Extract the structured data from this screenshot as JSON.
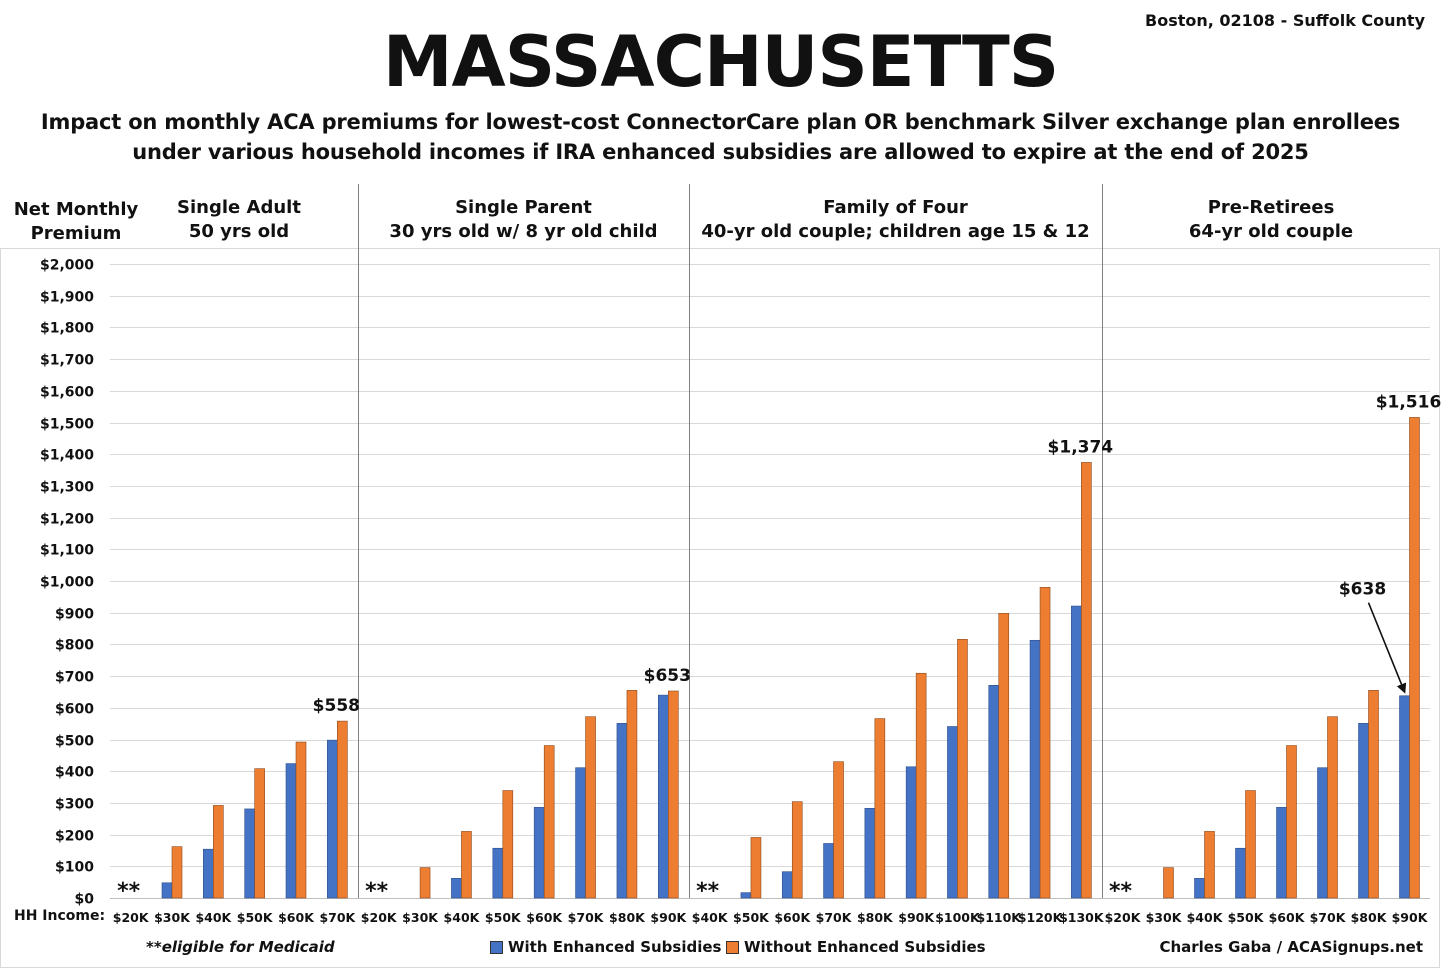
{
  "header": {
    "location": "Boston, 02108 - Suffolk County",
    "title": "MASSACHUSETTS",
    "subtitle_line1": "Impact on monthly ACA premiums for lowest-cost ConnectorCare plan OR benchmark Silver exchange plan enrollees",
    "subtitle_line2": "under various household incomes if IRA enhanced subsidies are allowed to expire at the end of 2025"
  },
  "footer": {
    "hh_income_label": "HH Income:",
    "footnote": "**eligible for Medicaid",
    "credit": "Charles Gaba / ACASignups.net"
  },
  "colors": {
    "with": "#4472C4",
    "without": "#ED7D31",
    "grid": "#d9d9d9",
    "divider": "#7f7f7f"
  },
  "chart_data": {
    "type": "bar",
    "ylabel_line1": "Net Monthly",
    "ylabel_line2": "Premium",
    "ylim": [
      0,
      2000
    ],
    "yticks": [
      0,
      100,
      200,
      300,
      400,
      500,
      600,
      700,
      800,
      900,
      1000,
      1100,
      1200,
      1300,
      1400,
      1500,
      1600,
      1700,
      1800,
      1900,
      2000
    ],
    "ytick_labels": [
      "$0",
      "$100",
      "$200",
      "$300",
      "$400",
      "$500",
      "$600",
      "$700",
      "$800",
      "$900",
      "$1,000",
      "$1,100",
      "$1,200",
      "$1,300",
      "$1,400",
      "$1,500",
      "$1,600",
      "$1,700",
      "$1,800",
      "$1,900",
      "$2,000"
    ],
    "grid": true,
    "legend": {
      "placement": "bottom",
      "with_label": "With Enhanced Subsidies",
      "without_label": "Without Enhanced Subsidies"
    },
    "panels": [
      {
        "title_line1": "Single Adult",
        "title_line2": "50 yrs old",
        "categories": [
          "$20K",
          "$30K",
          "$40K",
          "$50K",
          "$60K",
          "$70K"
        ],
        "medicaid_marker": "**",
        "series": [
          {
            "name": "With Enhanced Subsidies",
            "values": [
              0,
              48,
              154,
              281,
              424,
              498
            ]
          },
          {
            "name": "Without Enhanced Subsidies",
            "values": [
              0,
              162,
              292,
              408,
              492,
              558
            ]
          }
        ],
        "annotation": {
          "text": "$558",
          "category": "$70K",
          "value": 558
        }
      },
      {
        "title_line1": "Single Parent",
        "title_line2": "30 yrs old w/ 8 yr old child",
        "categories": [
          "$20K",
          "$30K",
          "$40K",
          "$50K",
          "$60K",
          "$70K",
          "$80K",
          "$90K"
        ],
        "medicaid_marker": "**",
        "series": [
          {
            "name": "With Enhanced Subsidies",
            "values": [
              0,
              0,
              62,
              157,
              286,
              411,
              551,
              640
            ]
          },
          {
            "name": "Without Enhanced Subsidies",
            "values": [
              0,
              96,
              210,
              339,
              481,
              572,
              655,
              653
            ]
          }
        ],
        "annotation": {
          "text": "$653",
          "category": "$90K",
          "value": 653
        }
      },
      {
        "title_line1": "Family of Four",
        "title_line2": "40-yr old couple; children age 15 & 12",
        "categories": [
          "$40K",
          "$50K",
          "$60K",
          "$70K",
          "$80K",
          "$90K",
          "$100K",
          "$110K",
          "$120K",
          "$130K"
        ],
        "medicaid_marker": "**",
        "series": [
          {
            "name": "With Enhanced Subsidies",
            "values": [
              0,
              17,
              83,
              172,
              283,
              414,
              541,
              671,
              813,
              921
            ]
          },
          {
            "name": "Without Enhanced Subsidies",
            "values": [
              0,
              191,
              304,
              430,
              566,
              709,
              816,
              898,
              980,
              1374
            ]
          }
        ],
        "annotation": {
          "text": "$1,374",
          "category": "$130K",
          "value": 1374
        }
      },
      {
        "title_line1": "Pre-Retirees",
        "title_line2": "64-yr old couple",
        "categories": [
          "$20K",
          "$30K",
          "$40K",
          "$50K",
          "$60K",
          "$70K",
          "$80K",
          "$90K"
        ],
        "medicaid_marker": "**",
        "series": [
          {
            "name": "With Enhanced Subsidies",
            "values": [
              0,
              0,
              62,
              157,
              286,
              411,
              551,
              638
            ]
          },
          {
            "name": "Without Enhanced Subsidies",
            "values": [
              0,
              96,
              210,
              339,
              481,
              572,
              655,
              1516
            ]
          }
        ],
        "annotation": {
          "text": "$1,516",
          "category": "$90K",
          "value": 1516
        },
        "arrow_annotation": {
          "text": "$638",
          "category": "$90K",
          "value": 638
        }
      }
    ]
  }
}
